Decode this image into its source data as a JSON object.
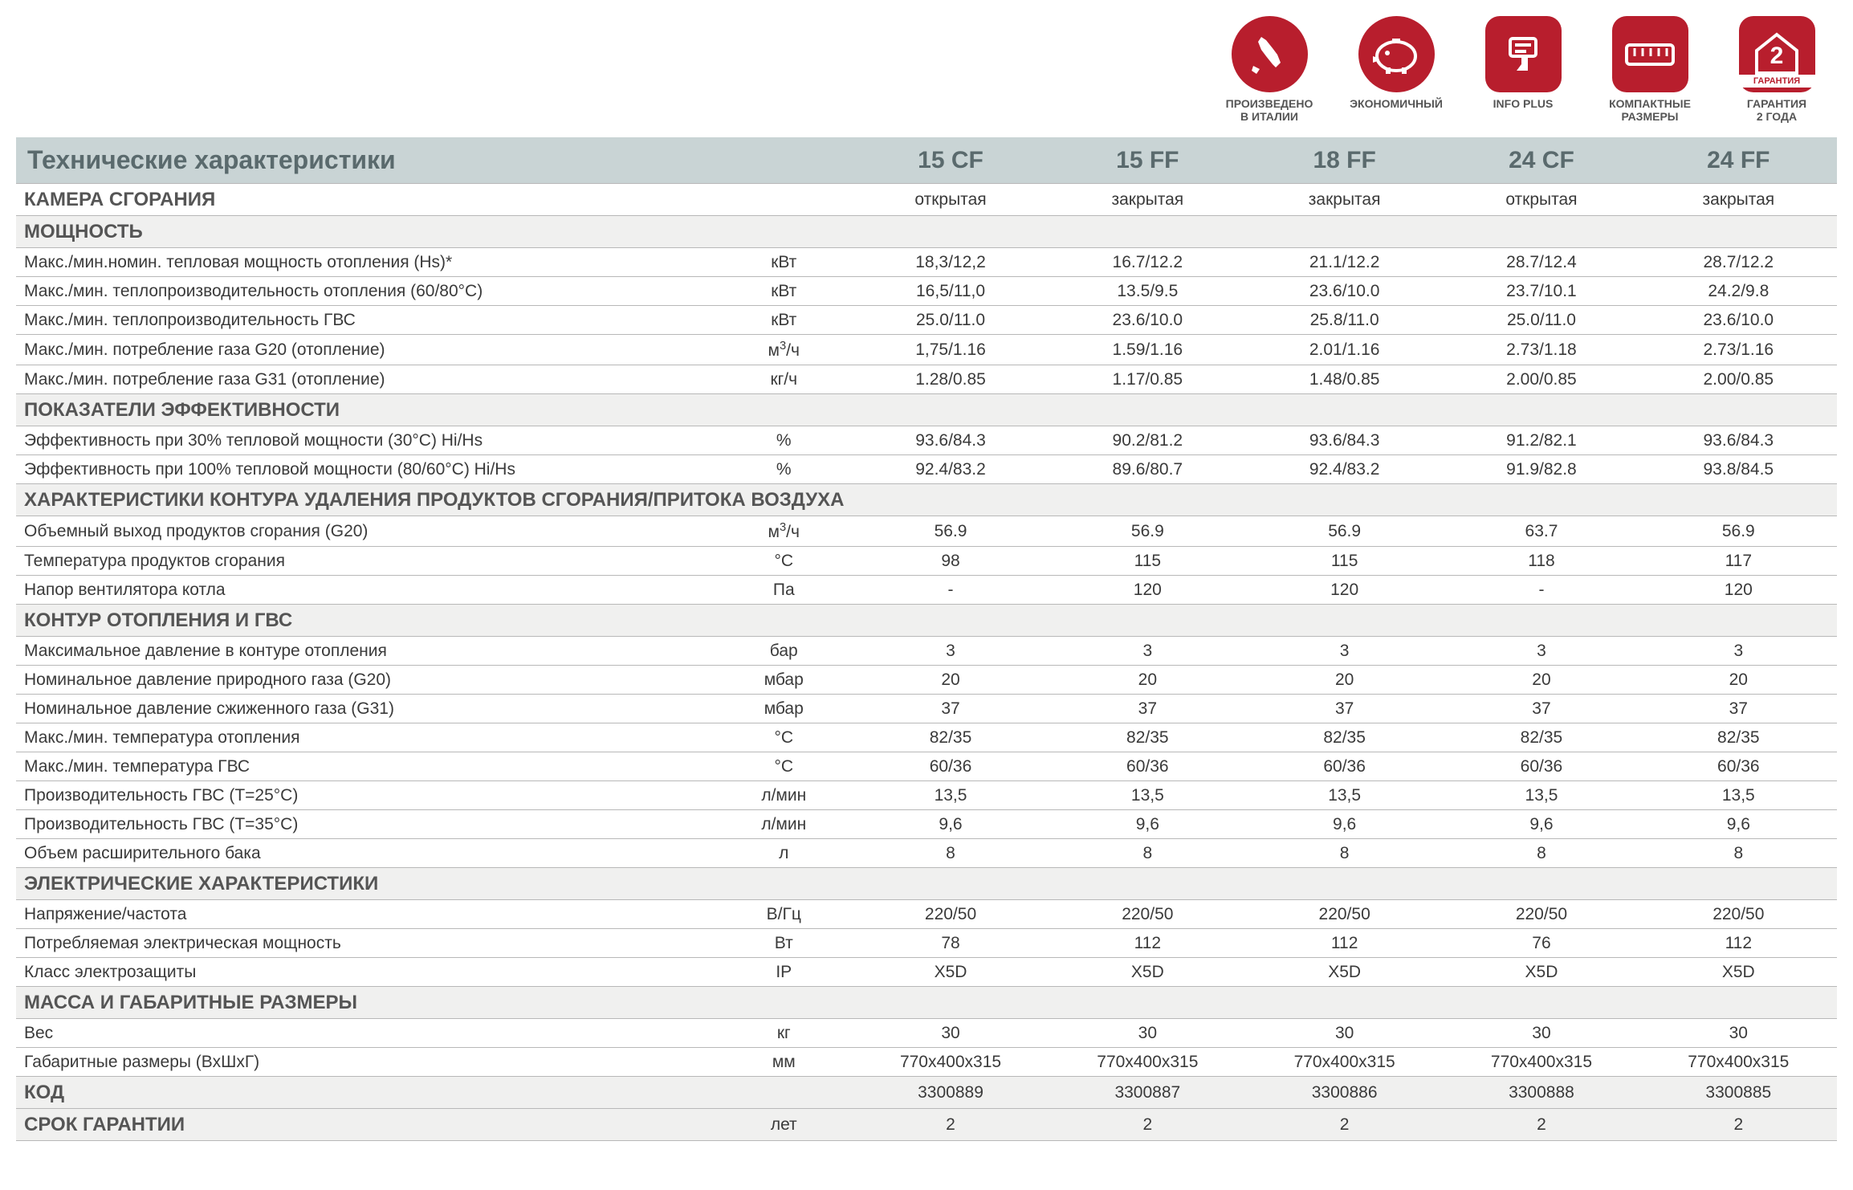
{
  "colors": {
    "brand_red": "#b81e2d",
    "header_bg": "#c9d4d5",
    "section_bg": "#f0f0ef",
    "border": "#b8b8b8"
  },
  "badges": [
    {
      "id": "italy",
      "label": "ПРОИЗВЕДЕНО\nВ ИТАЛИИ"
    },
    {
      "id": "economy",
      "label": "ЭКОНОМИЧНЫЙ"
    },
    {
      "id": "infoplus",
      "label": "INFO PLUS"
    },
    {
      "id": "compact",
      "label": "КОМПАКТНЫЕ\nРАЗМЕРЫ"
    },
    {
      "id": "warranty",
      "label": "ГАРАНТИЯ\n2 ГОДА"
    }
  ],
  "header": {
    "title": "Технические характеристики",
    "models": [
      "15 CF",
      "15 FF",
      "18 FF",
      "24 CF",
      "24 FF"
    ]
  },
  "rows": [
    {
      "param": "КАМЕРА СГОРАНИЯ",
      "unit": "",
      "vals": [
        "открытая",
        "закрытая",
        "закрытая",
        "открытая",
        "закрытая"
      ],
      "bold_param": true
    },
    {
      "section": "МОЩНОСТЬ"
    },
    {
      "param": "Макс./мин.номин. тепловая мощность отопления (Hs)*",
      "unit": "кВт",
      "vals": [
        "18,3/12,2",
        "16.7/12.2",
        "21.1/12.2",
        "28.7/12.4",
        "28.7/12.2"
      ]
    },
    {
      "param": "Макс./мин. теплопроизводительность отопления (60/80°C)",
      "unit": "кВт",
      "vals": [
        "16,5/11,0",
        "13.5/9.5",
        "23.6/10.0",
        "23.7/10.1",
        "24.2/9.8"
      ]
    },
    {
      "param": "Макс./мин. теплопроизводительность ГВС",
      "unit": "кВт",
      "vals": [
        "25.0/11.0",
        "23.6/10.0",
        "25.8/11.0",
        "25.0/11.0",
        "23.6/10.0"
      ]
    },
    {
      "param": "Макс./мин. потребление газа G20 (отопление)",
      "unit_html": "м<sup>3</sup>/ч",
      "vals": [
        "1,75/1.16",
        "1.59/1.16",
        "2.01/1.16",
        "2.73/1.18",
        "2.73/1.16"
      ]
    },
    {
      "param": "Макс./мин. потребление газа G31 (отопление)",
      "unit": "кг/ч",
      "vals": [
        "1.28/0.85",
        "1.17/0.85",
        "1.48/0.85",
        "2.00/0.85",
        "2.00/0.85"
      ]
    },
    {
      "section": "ПОКАЗАТЕЛИ ЭФФЕКТИВНОСТИ"
    },
    {
      "param": "Эффективность при 30% тепловой мощности (30°C) Hi/Hs",
      "unit": "%",
      "vals": [
        "93.6/84.3",
        "90.2/81.2",
        "93.6/84.3",
        "91.2/82.1",
        "93.6/84.3"
      ]
    },
    {
      "param": "Эффективность при 100% тепловой мощности (80/60°C) Hi/Hs",
      "unit": "%",
      "vals": [
        "92.4/83.2",
        "89.6/80.7",
        "92.4/83.2",
        "91.9/82.8",
        "93.8/84.5"
      ]
    },
    {
      "section": "ХАРАКТЕРИСТИКИ КОНТУРА УДАЛЕНИЯ ПРОДУКТОВ СГОРАНИЯ/ПРИТОКА ВОЗДУХА"
    },
    {
      "param": "Объемный выход продуктов сгорания (G20)",
      "unit_html": "м<sup>3</sup>/ч",
      "vals": [
        "56.9",
        "56.9",
        "56.9",
        "63.7",
        "56.9"
      ]
    },
    {
      "param": "Температура продуктов сгорания",
      "unit": "°C",
      "vals": [
        "98",
        "115",
        "115",
        "118",
        "117"
      ]
    },
    {
      "param": "Напор вентилятора котла",
      "unit": "Па",
      "vals": [
        "-",
        "120",
        "120",
        "-",
        "120"
      ]
    },
    {
      "section": "КОНТУР ОТОПЛЕНИЯ И ГВС"
    },
    {
      "param": "Максимальное давление в контуре отопления",
      "unit": "бар",
      "vals": [
        "3",
        "3",
        "3",
        "3",
        "3"
      ]
    },
    {
      "param": "Номинальное давление природного газа (G20)",
      "unit": "мбар",
      "vals": [
        "20",
        "20",
        "20",
        "20",
        "20"
      ]
    },
    {
      "param": "Номинальное давление сжиженного газа (G31)",
      "unit": "мбар",
      "vals": [
        "37",
        "37",
        "37",
        "37",
        "37"
      ]
    },
    {
      "param": "Макс./мин. температура отопления",
      "unit": "°C",
      "vals": [
        "82/35",
        "82/35",
        "82/35",
        "82/35",
        "82/35"
      ]
    },
    {
      "param": "Макс./мин. температура ГВС",
      "unit": "°C",
      "vals": [
        "60/36",
        "60/36",
        "60/36",
        "60/36",
        "60/36"
      ]
    },
    {
      "param": "Производительность ГВС (T=25°C)",
      "unit": "л/мин",
      "vals": [
        "13,5",
        "13,5",
        "13,5",
        "13,5",
        "13,5"
      ]
    },
    {
      "param": "Производительность ГВС (T=35°C)",
      "unit": "л/мин",
      "vals": [
        "9,6",
        "9,6",
        "9,6",
        "9,6",
        "9,6"
      ]
    },
    {
      "param": "Объем расширительного бака",
      "unit": "л",
      "vals": [
        "8",
        "8",
        "8",
        "8",
        "8"
      ]
    },
    {
      "section": "ЭЛЕКТРИЧЕСКИЕ ХАРАКТЕРИСТИКИ"
    },
    {
      "param": "Напряжение/частота",
      "unit": "В/Гц",
      "vals": [
        "220/50",
        "220/50",
        "220/50",
        "220/50",
        "220/50"
      ]
    },
    {
      "param": "Потребляемая электрическая мощность",
      "unit": "Вт",
      "vals": [
        "78",
        "112",
        "112",
        "76",
        "112"
      ]
    },
    {
      "param": "Класс электрозащиты",
      "unit": "IP",
      "vals": [
        "X5D",
        "X5D",
        "X5D",
        "X5D",
        "X5D"
      ]
    },
    {
      "section": "МАССА И ГАБАРИТНЫЕ РАЗМЕРЫ"
    },
    {
      "param": "Вес",
      "unit": "кг",
      "vals": [
        "30",
        "30",
        "30",
        "30",
        "30"
      ]
    },
    {
      "param": "Габаритные размеры (ВхШхГ)",
      "unit": "мм",
      "vals": [
        "770x400x315",
        "770x400x315",
        "770x400x315",
        "770x400x315",
        "770x400x315"
      ]
    },
    {
      "param": "КОД",
      "unit": "",
      "vals": [
        "3300889",
        "3300887",
        "3300886",
        "3300888",
        "3300885"
      ],
      "bold_param": true,
      "section_bg": true
    },
    {
      "param": "СРОК ГАРАНТИИ",
      "unit": "лет",
      "vals": [
        "2",
        "2",
        "2",
        "2",
        "2"
      ],
      "bold_param": true,
      "section_bg": true
    }
  ]
}
